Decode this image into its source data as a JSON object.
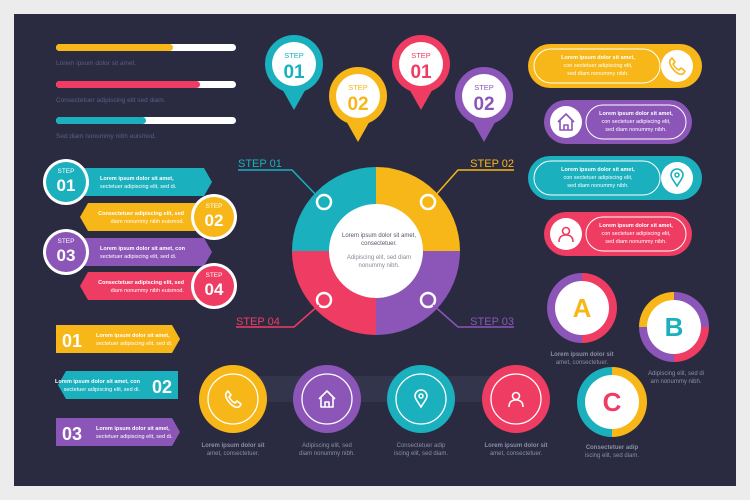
{
  "colors": {
    "background": "#2a2b40",
    "frame": "#ececec",
    "yellow": "#f7b718",
    "teal": "#1ab0bd",
    "pink": "#ef3c63",
    "purple": "#8c55b8"
  },
  "progress_bars": [
    {
      "value": 0.65,
      "color": "#f7b718",
      "text": "Lorem ipsum dolor sit amet."
    },
    {
      "value": 0.8,
      "color": "#ef3c63",
      "text": "Consectetuer adipiscing elit sed diam."
    },
    {
      "value": 0.5,
      "color": "#1ab0bd",
      "text": "Sed diam nonummy nibh euismod."
    }
  ],
  "pins": [
    {
      "step": "STEP",
      "num": "01",
      "color": "#1ab0bd"
    },
    {
      "step": "STEP",
      "num": "02",
      "color": "#f7b718"
    },
    {
      "step": "STEP",
      "num": "01",
      "color": "#ef3c63"
    },
    {
      "step": "STEP",
      "num": "02",
      "color": "#8c55b8"
    }
  ],
  "step_labels": [
    "STEP 01",
    "STEP 02",
    "STEP 04",
    "STEP 03"
  ],
  "hub": {
    "line1": "Lorem ipsum dolor sit amet, consectetuer.",
    "line2": "Adipiscing elit, sed diam nonummy nibh."
  },
  "left_steps": [
    {
      "step": "STEP",
      "num": "01",
      "color": "#1ab0bd",
      "line1": "Lorem ipsum dolor sit amet,",
      "line2": "sectetuer adipiscing elit, sed di."
    },
    {
      "step": "STEP",
      "num": "02",
      "color": "#f7b718",
      "line1": "Consectetuer adipiscing elit, sed",
      "line2": "diam nonummy nibh euismod."
    },
    {
      "step": "STEP",
      "num": "03",
      "color": "#8c55b8",
      "line1": "Lorem ipsum dolor sit amet, con",
      "line2": "sectetuer adipiscing elit, sed di."
    },
    {
      "step": "STEP",
      "num": "04",
      "color": "#ef3c63",
      "line1": "Consectetuer adipiscing elit, sed",
      "line2": "diam nonummy nibh euismod."
    }
  ],
  "arrows": [
    {
      "num": "01",
      "color": "#f7b718",
      "line1": "Lorem ipsum dolor sit amet,",
      "line2": "sectetuer adipiscing elit, sed di."
    },
    {
      "num": "02",
      "color": "#1ab0bd",
      "line1": "Lorem ipsum dolor sit amet, con",
      "line2": "sectetuer adipiscing elit, sed di."
    },
    {
      "num": "03",
      "color": "#8c55b8",
      "line1": "Lorem ipsum dolor sit amet,",
      "line2": "sectetuer adipiscing elit, sed di."
    }
  ],
  "right_bars": [
    {
      "color": "#f7b718",
      "icon": "phone-icon",
      "line1": "Lorem ipsum dolor sit amet,",
      "line2": "con sectetuer adipiscing elit,",
      "line3": "sed diam nonummy nibh."
    },
    {
      "color": "#8c55b8",
      "icon": "home-icon",
      "line1": "Lorem ipsum dolor sit amet,",
      "line2": "con sectetuer adipiscing elit,",
      "line3": "sed diam nonummy nibh."
    },
    {
      "color": "#1ab0bd",
      "icon": "location-pin-icon",
      "line1": "Lorem ipsum dolor sit amet,",
      "line2": "con sectetuer adipiscing elit,",
      "line3": "sed diam nonummy nibh."
    },
    {
      "color": "#ef3c63",
      "icon": "user-icon",
      "line1": "Lorem ipsum dolor sit amet,",
      "line2": "con sectetuer adipiscing elit,",
      "line3": "sed diam nonummy nibh."
    }
  ],
  "abc": [
    {
      "letter": "A",
      "line1": "Lorem ipsum dolor sit",
      "line2": "amet, consectetuer."
    },
    {
      "letter": "B",
      "line1": "Adipiscing elit, sed di",
      "line2": "am nonummy nibh."
    },
    {
      "letter": "C",
      "line1": "Consectetuer adip",
      "line2": "iscing elit, sed diam."
    }
  ],
  "bottom_icons": [
    {
      "color": "#f7b718",
      "icon": "phone-icon",
      "line1": "Lorem ipsum dolor sit",
      "line2": "amet, consectetuer."
    },
    {
      "color": "#8c55b8",
      "icon": "home-icon",
      "line1": "Adipiscing elit, sed",
      "line2": "diam nonummy nibh."
    },
    {
      "color": "#1ab0bd",
      "icon": "location-pin-icon",
      "line1": "Consectetuer adip",
      "line2": "iscing elit, sed diam."
    },
    {
      "color": "#ef3c63",
      "icon": "user-icon",
      "line1": "Lorem ipsum dolor sit",
      "line2": "amet, consectetuer."
    }
  ]
}
